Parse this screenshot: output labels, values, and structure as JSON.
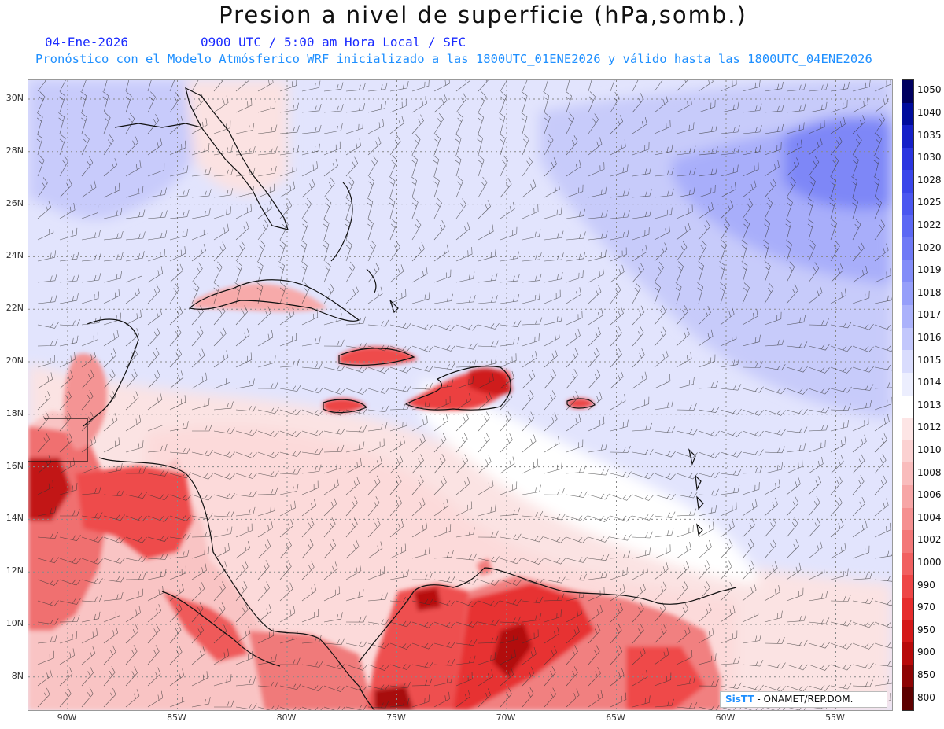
{
  "header": {
    "title": "Presion a nivel de superficie (hPa,somb.)",
    "date": "04-Ene-2026",
    "time": "0900 UTC / 5:00 am Hora Local / SFC",
    "model_info": "Pronóstico con el Modelo Atmósferico WRF inicializado a las 1800UTC_01ENE2026 y válido hasta las  1800UTC_04ENE2026"
  },
  "map": {
    "lat_labels": [
      "30N",
      "28N",
      "26N",
      "24N",
      "22N",
      "20N",
      "18N",
      "16N",
      "14N",
      "12N",
      "10N",
      "8N"
    ],
    "lon_labels": [
      "90W",
      "85W",
      "80W",
      "75W",
      "70W",
      "65W",
      "60W",
      "55W"
    ]
  },
  "colorbar": {
    "levels": [
      {
        "label": "1050",
        "color": "#000060"
      },
      {
        "label": "1040",
        "color": "#000c9c"
      },
      {
        "label": "1035",
        "color": "#1520c8"
      },
      {
        "label": "1030",
        "color": "#2a35e0"
      },
      {
        "label": "1028",
        "color": "#3a46ea"
      },
      {
        "label": "1025",
        "color": "#4b57f0"
      },
      {
        "label": "1022",
        "color": "#5c68f4"
      },
      {
        "label": "1020",
        "color": "#6f7af6"
      },
      {
        "label": "1019",
        "color": "#838df8"
      },
      {
        "label": "1018",
        "color": "#969ffa"
      },
      {
        "label": "1017",
        "color": "#abb2fb"
      },
      {
        "label": "1016",
        "color": "#c2c7fc"
      },
      {
        "label": "1015",
        "color": "#d9dcfd"
      },
      {
        "label": "1014",
        "color": "#eceefe"
      },
      {
        "label": "1013",
        "color": "#ffffff"
      },
      {
        "label": "1012",
        "color": "#fde5e5"
      },
      {
        "label": "1010",
        "color": "#fbd1d1"
      },
      {
        "label": "1008",
        "color": "#f9bcbc"
      },
      {
        "label": "1006",
        "color": "#f7a6a6"
      },
      {
        "label": "1004",
        "color": "#f59090"
      },
      {
        "label": "1002",
        "color": "#f37878"
      },
      {
        "label": "1000",
        "color": "#f16060"
      },
      {
        "label": "990",
        "color": "#ee4646"
      },
      {
        "label": "970",
        "color": "#e62c2c"
      },
      {
        "label": "950",
        "color": "#d41818"
      },
      {
        "label": "900",
        "color": "#b80a0a"
      },
      {
        "label": "850",
        "color": "#8e0404"
      },
      {
        "label": "800",
        "color": "#5e0000"
      }
    ]
  },
  "credit": {
    "logo": "SisTT",
    "text": "- ONAMET/REP.DOM."
  }
}
